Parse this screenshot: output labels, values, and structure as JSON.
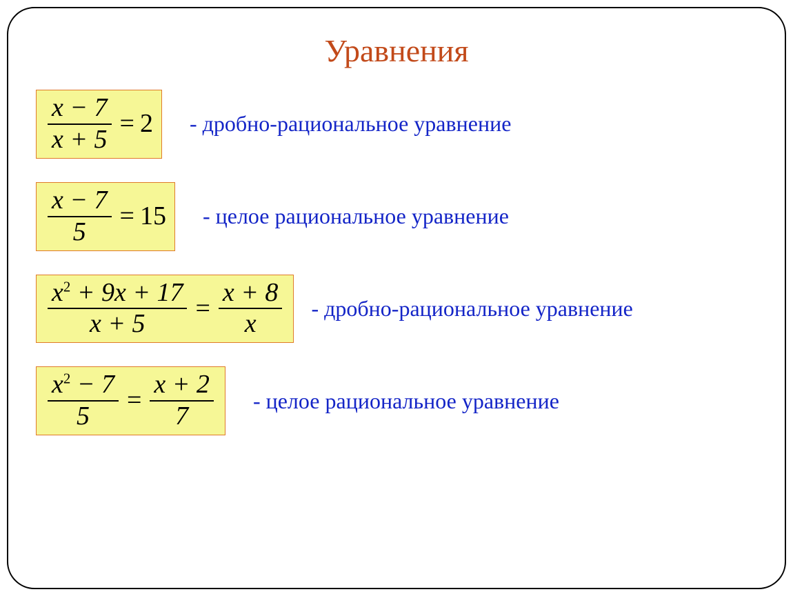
{
  "title": "Уравнения",
  "colors": {
    "title": "#c24a1a",
    "desc": "#1425c7",
    "box_bg": "#f6f796",
    "box_border": "#e07a2a",
    "frame": "#000000",
    "text": "#000000"
  },
  "fontsizes": {
    "title": 46,
    "equation": 38,
    "description": 32
  },
  "equations": [
    {
      "left_num": "x − 7",
      "left_den": "x + 5",
      "equals": "=",
      "rhs": "2",
      "description": "- дробно-рациональное уравнение"
    },
    {
      "left_num": "x − 7",
      "left_den": "5",
      "equals": "=",
      "rhs": "15",
      "description": "- целое рациональное уравнение"
    },
    {
      "left_num_a": "x",
      "left_num_exp": "2",
      "left_num_b": " + 9x + 17",
      "left_den": "x + 5",
      "equals": "=",
      "right_num": "x + 8",
      "right_den": "x",
      "description": "- дробно-рациональное уравнение"
    },
    {
      "left_num_a": "x",
      "left_num_exp": "2",
      "left_num_b": " − 7",
      "left_den": "5",
      "equals": "=",
      "right_num": "x + 2",
      "right_den": "7",
      "description": "- целое рациональное уравнение"
    }
  ]
}
